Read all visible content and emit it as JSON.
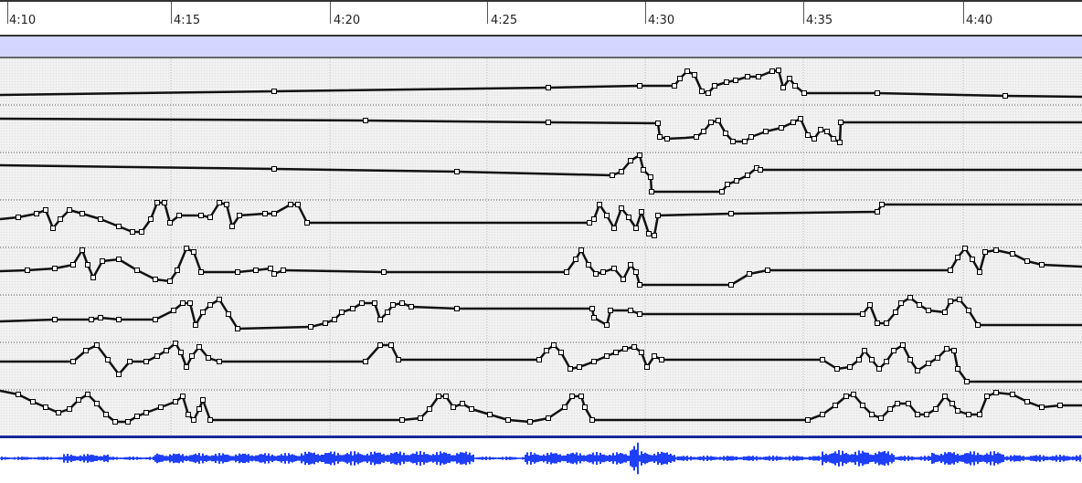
{
  "window": {
    "title": ""
  },
  "timeline": {
    "ticks": [
      "4:10",
      "4:15",
      "4:20",
      "4:25",
      "4:30",
      "4:35",
      "4:40"
    ]
  },
  "colors": {
    "selection_bar": "#d4d6ff",
    "curve": "#111111",
    "waveform": "#1f3fff",
    "track_background": "#f1f1f1"
  },
  "tracks": [
    {
      "id": "track-1"
    },
    {
      "id": "track-2"
    },
    {
      "id": "track-3"
    },
    {
      "id": "track-4"
    },
    {
      "id": "track-5"
    },
    {
      "id": "track-6"
    },
    {
      "id": "track-7"
    },
    {
      "id": "track-8"
    }
  ]
}
